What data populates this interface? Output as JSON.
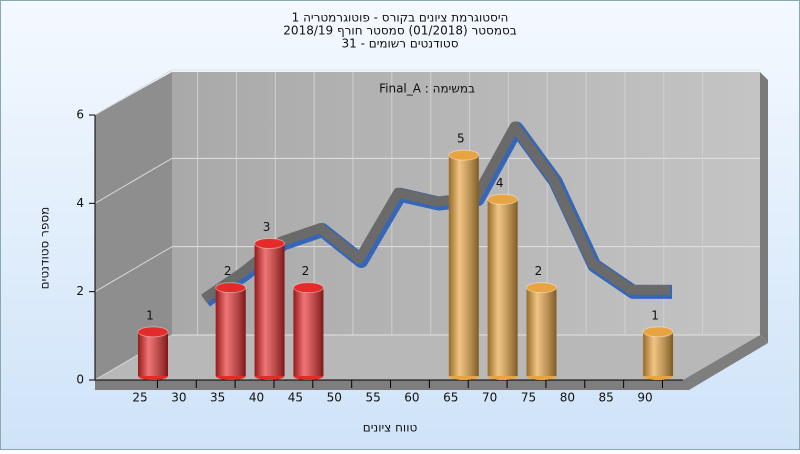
{
  "chart_data": {
    "type": "bar3d",
    "title_lines": [
      "היסטוגרמת ציונים בקורס - פוטוגרמטריה 1",
      "בסמסטר  (01/2018)  סמסטר חורף 2018/19",
      "סטודנטים רשומים - 31"
    ],
    "annotation": "Final_A : במשימה",
    "x_label": "טווח ציונים",
    "y_label": "מספר סטודנטים",
    "categories": [
      "25",
      "30",
      "35",
      "40",
      "45",
      "50",
      "55",
      "60",
      "65",
      "70",
      "75",
      "80",
      "85",
      "90"
    ],
    "values": [
      1,
      0,
      2,
      3,
      2,
      0,
      0,
      0,
      5,
      4,
      2,
      0,
      0,
      1
    ],
    "colors": [
      "#e52a2a",
      "#e52a2a",
      "#e52a2a",
      "#e52a2a",
      "#e52a2a",
      "#e52a2a",
      "#e52a2a",
      "#e8a440",
      "#e8a440",
      "#e8a440",
      "#e8a440",
      "#e8a440",
      "#e8a440",
      "#e8a440"
    ],
    "curve": {
      "color": "#6a6a6a",
      "values": [
        null,
        1.5,
        2.1,
        2.8,
        3.1,
        2.4,
        3.9,
        3.7,
        3.8,
        5.4,
        4.2,
        2.3,
        1.7,
        1.7
      ]
    },
    "ylim": [
      0,
      6
    ],
    "yticks": [
      0,
      2,
      4,
      6
    ],
    "grid": true
  }
}
